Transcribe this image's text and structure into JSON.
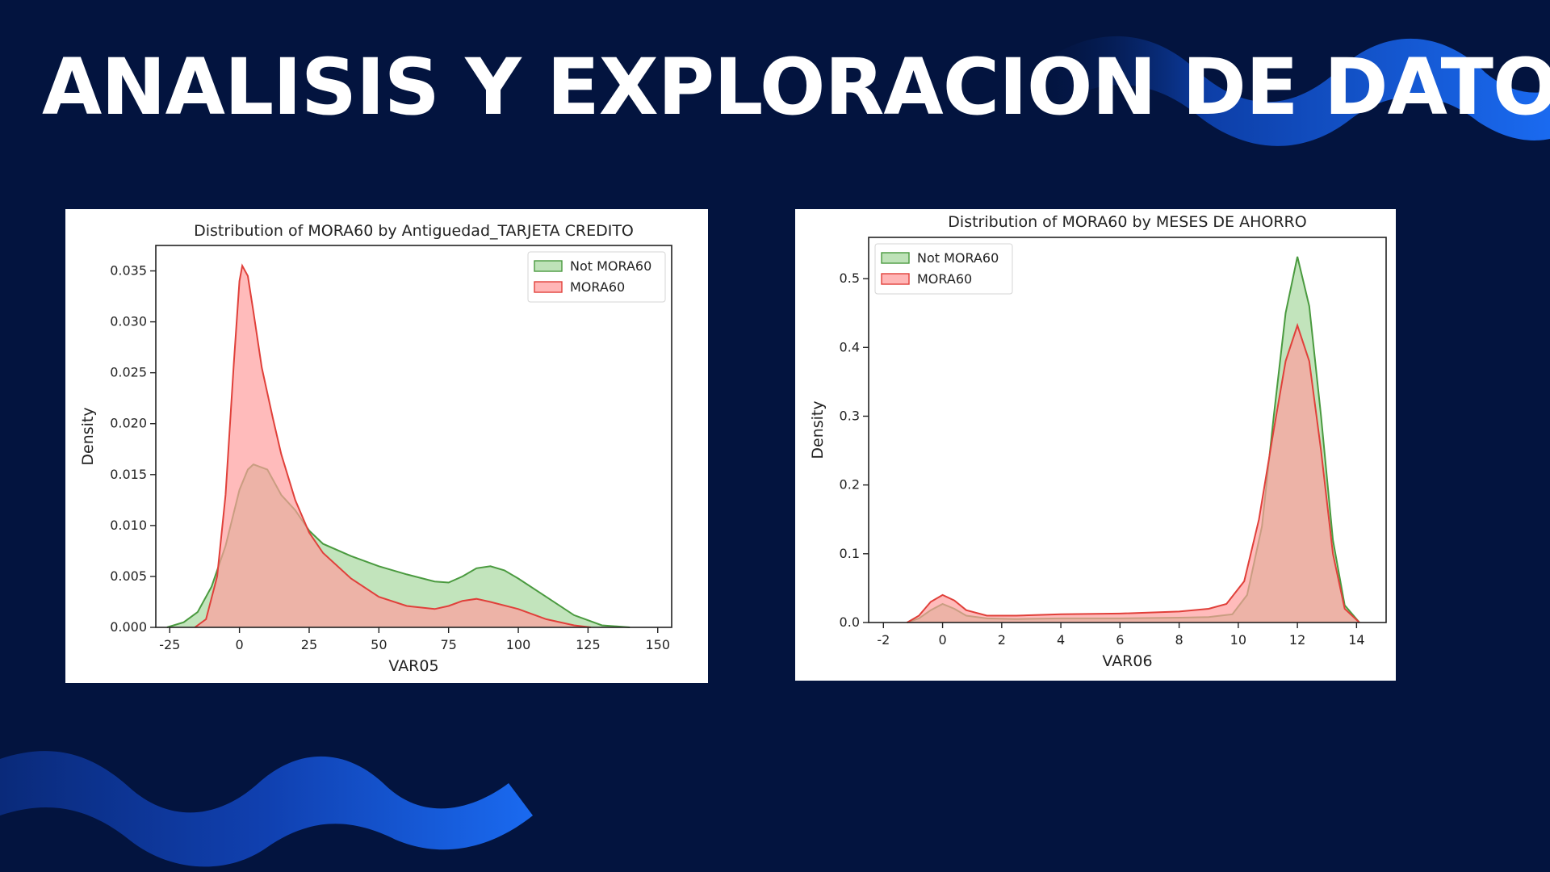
{
  "slide": {
    "title": "ANALISIS Y EXPLORACION DE DATOS"
  },
  "colors": {
    "background": "#03143f",
    "accent_blue": "#1565e0",
    "green_fill": "#a8d8a0",
    "green_line": "#4a9a3f",
    "red_fill": "#ff9e9e",
    "red_line": "#e0403a"
  },
  "chart_data": [
    {
      "type": "area",
      "title": "Distribution of MORA60 by Antiguedad_TARJETA CREDITO",
      "xlabel": "VAR05",
      "ylabel": "Density",
      "xlim": [
        -30,
        155
      ],
      "ylim": [
        0,
        0.0375
      ],
      "xticks": [
        -25,
        0,
        25,
        50,
        75,
        100,
        125,
        150
      ],
      "yticks": [
        0.0,
        0.005,
        0.01,
        0.015,
        0.02,
        0.025,
        0.03,
        0.035
      ],
      "ytick_labels": [
        "0.000",
        "0.005",
        "0.010",
        "0.015",
        "0.020",
        "0.025",
        "0.030",
        "0.035"
      ],
      "legend_position": "top-right",
      "series": [
        {
          "name": "Not MORA60",
          "color": "green",
          "x": [
            -26,
            -20,
            -15,
            -10,
            -5,
            0,
            3,
            5,
            10,
            15,
            20,
            25,
            30,
            40,
            50,
            60,
            70,
            75,
            80,
            85,
            90,
            95,
            100,
            110,
            120,
            130,
            140
          ],
          "y": [
            0.0,
            0.0005,
            0.0015,
            0.004,
            0.008,
            0.0135,
            0.0155,
            0.016,
            0.0155,
            0.013,
            0.0115,
            0.0095,
            0.0082,
            0.007,
            0.006,
            0.0052,
            0.0045,
            0.0044,
            0.005,
            0.0058,
            0.006,
            0.0056,
            0.0048,
            0.003,
            0.0012,
            0.0002,
            0.0
          ]
        },
        {
          "name": "MORA60",
          "color": "red",
          "x": [
            -16,
            -12,
            -8,
            -5,
            -2,
            0,
            1,
            3,
            5,
            8,
            12,
            15,
            20,
            25,
            30,
            40,
            50,
            60,
            70,
            75,
            80,
            85,
            90,
            100,
            110,
            120,
            126
          ],
          "y": [
            0.0,
            0.0008,
            0.005,
            0.013,
            0.026,
            0.034,
            0.0355,
            0.0345,
            0.031,
            0.0255,
            0.0205,
            0.017,
            0.0125,
            0.0093,
            0.0073,
            0.0048,
            0.003,
            0.0021,
            0.0018,
            0.0021,
            0.0026,
            0.0028,
            0.0025,
            0.0018,
            0.0008,
            0.0002,
            0.0
          ]
        }
      ]
    },
    {
      "type": "area",
      "title": "Distribution of MORA60 by MESES DE AHORRO",
      "xlabel": "VAR06",
      "ylabel": "Density",
      "xlim": [
        -2.5,
        15
      ],
      "ylim": [
        0,
        0.56
      ],
      "xticks": [
        -2,
        0,
        2,
        4,
        6,
        8,
        10,
        12,
        14
      ],
      "yticks": [
        0.0,
        0.1,
        0.2,
        0.3,
        0.4,
        0.5
      ],
      "ytick_labels": [
        "0.0",
        "0.1",
        "0.2",
        "0.3",
        "0.4",
        "0.5"
      ],
      "legend_position": "top-left",
      "series": [
        {
          "name": "Not MORA60",
          "color": "green",
          "x": [
            -1.2,
            -0.8,
            -0.4,
            0.0,
            0.4,
            0.8,
            1.5,
            2.5,
            4,
            6,
            8,
            9,
            9.8,
            10.3,
            10.8,
            11.2,
            11.6,
            12.0,
            12.4,
            12.8,
            13.2,
            13.6,
            14.1
          ],
          "y": [
            0.0,
            0.006,
            0.018,
            0.027,
            0.02,
            0.01,
            0.006,
            0.005,
            0.006,
            0.006,
            0.007,
            0.008,
            0.012,
            0.04,
            0.14,
            0.3,
            0.45,
            0.532,
            0.46,
            0.3,
            0.12,
            0.025,
            0.0
          ]
        },
        {
          "name": "MORA60",
          "color": "red",
          "x": [
            -1.2,
            -0.8,
            -0.4,
            0.0,
            0.4,
            0.8,
            1.5,
            2.5,
            4,
            6,
            8,
            9,
            9.6,
            10.2,
            10.7,
            11.2,
            11.6,
            12.0,
            12.4,
            12.8,
            13.2,
            13.6,
            14.1
          ],
          "y": [
            0.0,
            0.01,
            0.03,
            0.04,
            0.032,
            0.018,
            0.01,
            0.01,
            0.012,
            0.013,
            0.016,
            0.02,
            0.027,
            0.06,
            0.15,
            0.28,
            0.38,
            0.432,
            0.38,
            0.25,
            0.1,
            0.02,
            0.0
          ]
        }
      ]
    }
  ]
}
